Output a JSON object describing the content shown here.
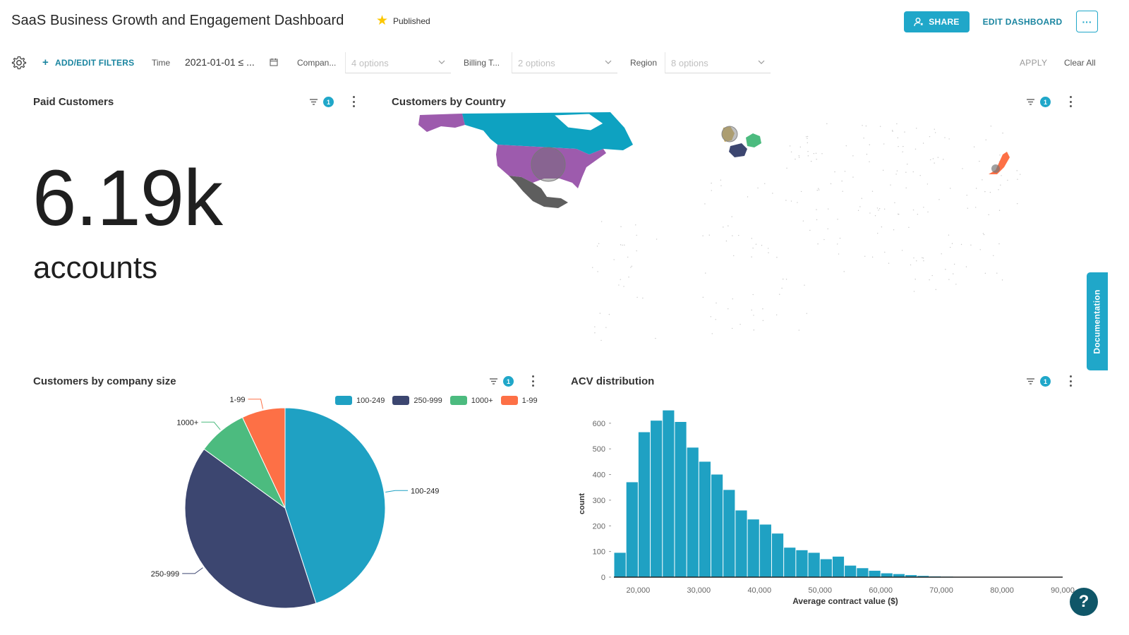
{
  "header": {
    "title": "SaaS Business Growth and Engagement Dashboard",
    "status": "Published",
    "share_label": "SHARE",
    "edit_label": "EDIT DASHBOARD",
    "more_label": "···"
  },
  "filters": {
    "add_label": "ADD/EDIT FILTERS",
    "time_label": "Time",
    "time_value": "2021-01-01 ≤ ...",
    "company_label": "Compan...",
    "company_placeholder": "4 options",
    "billing_label": "Billing T...",
    "billing_placeholder": "2 options",
    "region_label": "Region",
    "region_placeholder": "8 options",
    "apply_label": "APPLY",
    "clear_label": "Clear All"
  },
  "cards": {
    "paid": {
      "title": "Paid Customers",
      "filter_count": "1",
      "value": "6.19k",
      "unit": "accounts"
    },
    "country": {
      "title": "Customers by Country",
      "filter_count": "1"
    },
    "size": {
      "title": "Customers by company size",
      "filter_count": "1"
    },
    "acv": {
      "title": "ACV distribution",
      "filter_count": "1"
    }
  },
  "documentation_label": "Documentation",
  "help_label": "?",
  "colors": {
    "accent": "#20a7c9",
    "c_100_249": "#1fa1c3",
    "c_250_999": "#3c4670",
    "c_1000": "#4cbb7f",
    "c_1_99": "#fd7046",
    "usa": "#9d5bad",
    "canada": "#0ea2c1",
    "mexico": "#5e5e5e"
  },
  "chart_data": [
    {
      "type": "pie",
      "categories": [
        "100-249",
        "250-999",
        "1000+",
        "1-99"
      ],
      "values": [
        45,
        40,
        8,
        7
      ],
      "legend": [
        "100-249",
        "250-999",
        "1000+",
        "1-99"
      ],
      "legend_position": "top-right"
    },
    {
      "type": "bar",
      "x": [
        17000,
        19000,
        21000,
        23000,
        25000,
        27000,
        29000,
        31000,
        33000,
        35000,
        37000,
        39000,
        41000,
        43000,
        45000,
        47000,
        49000,
        51000,
        53000,
        55000,
        57000,
        59000,
        61000,
        63000,
        65000,
        67000,
        69000,
        71000,
        73000,
        75000,
        77000
      ],
      "values": [
        95,
        370,
        565,
        610,
        650,
        605,
        505,
        450,
        400,
        340,
        260,
        225,
        205,
        170,
        115,
        105,
        95,
        70,
        80,
        45,
        35,
        25,
        15,
        12,
        8,
        5,
        3,
        2,
        1,
        1,
        0
      ],
      "bin_width": 2000,
      "xlabel": "Average contract value ($)",
      "ylabel": "count",
      "xlim": [
        16000,
        90000
      ],
      "ylim": [
        0,
        660
      ],
      "xticks": [
        20000,
        30000,
        40000,
        50000,
        60000,
        70000,
        80000,
        90000
      ],
      "xtick_labels": [
        "20,000",
        "30,000",
        "40,000",
        "50,000",
        "60,000",
        "70,000",
        "80,000",
        "90,000"
      ],
      "yticks": [
        0,
        100,
        200,
        300,
        400,
        500,
        600
      ]
    }
  ]
}
